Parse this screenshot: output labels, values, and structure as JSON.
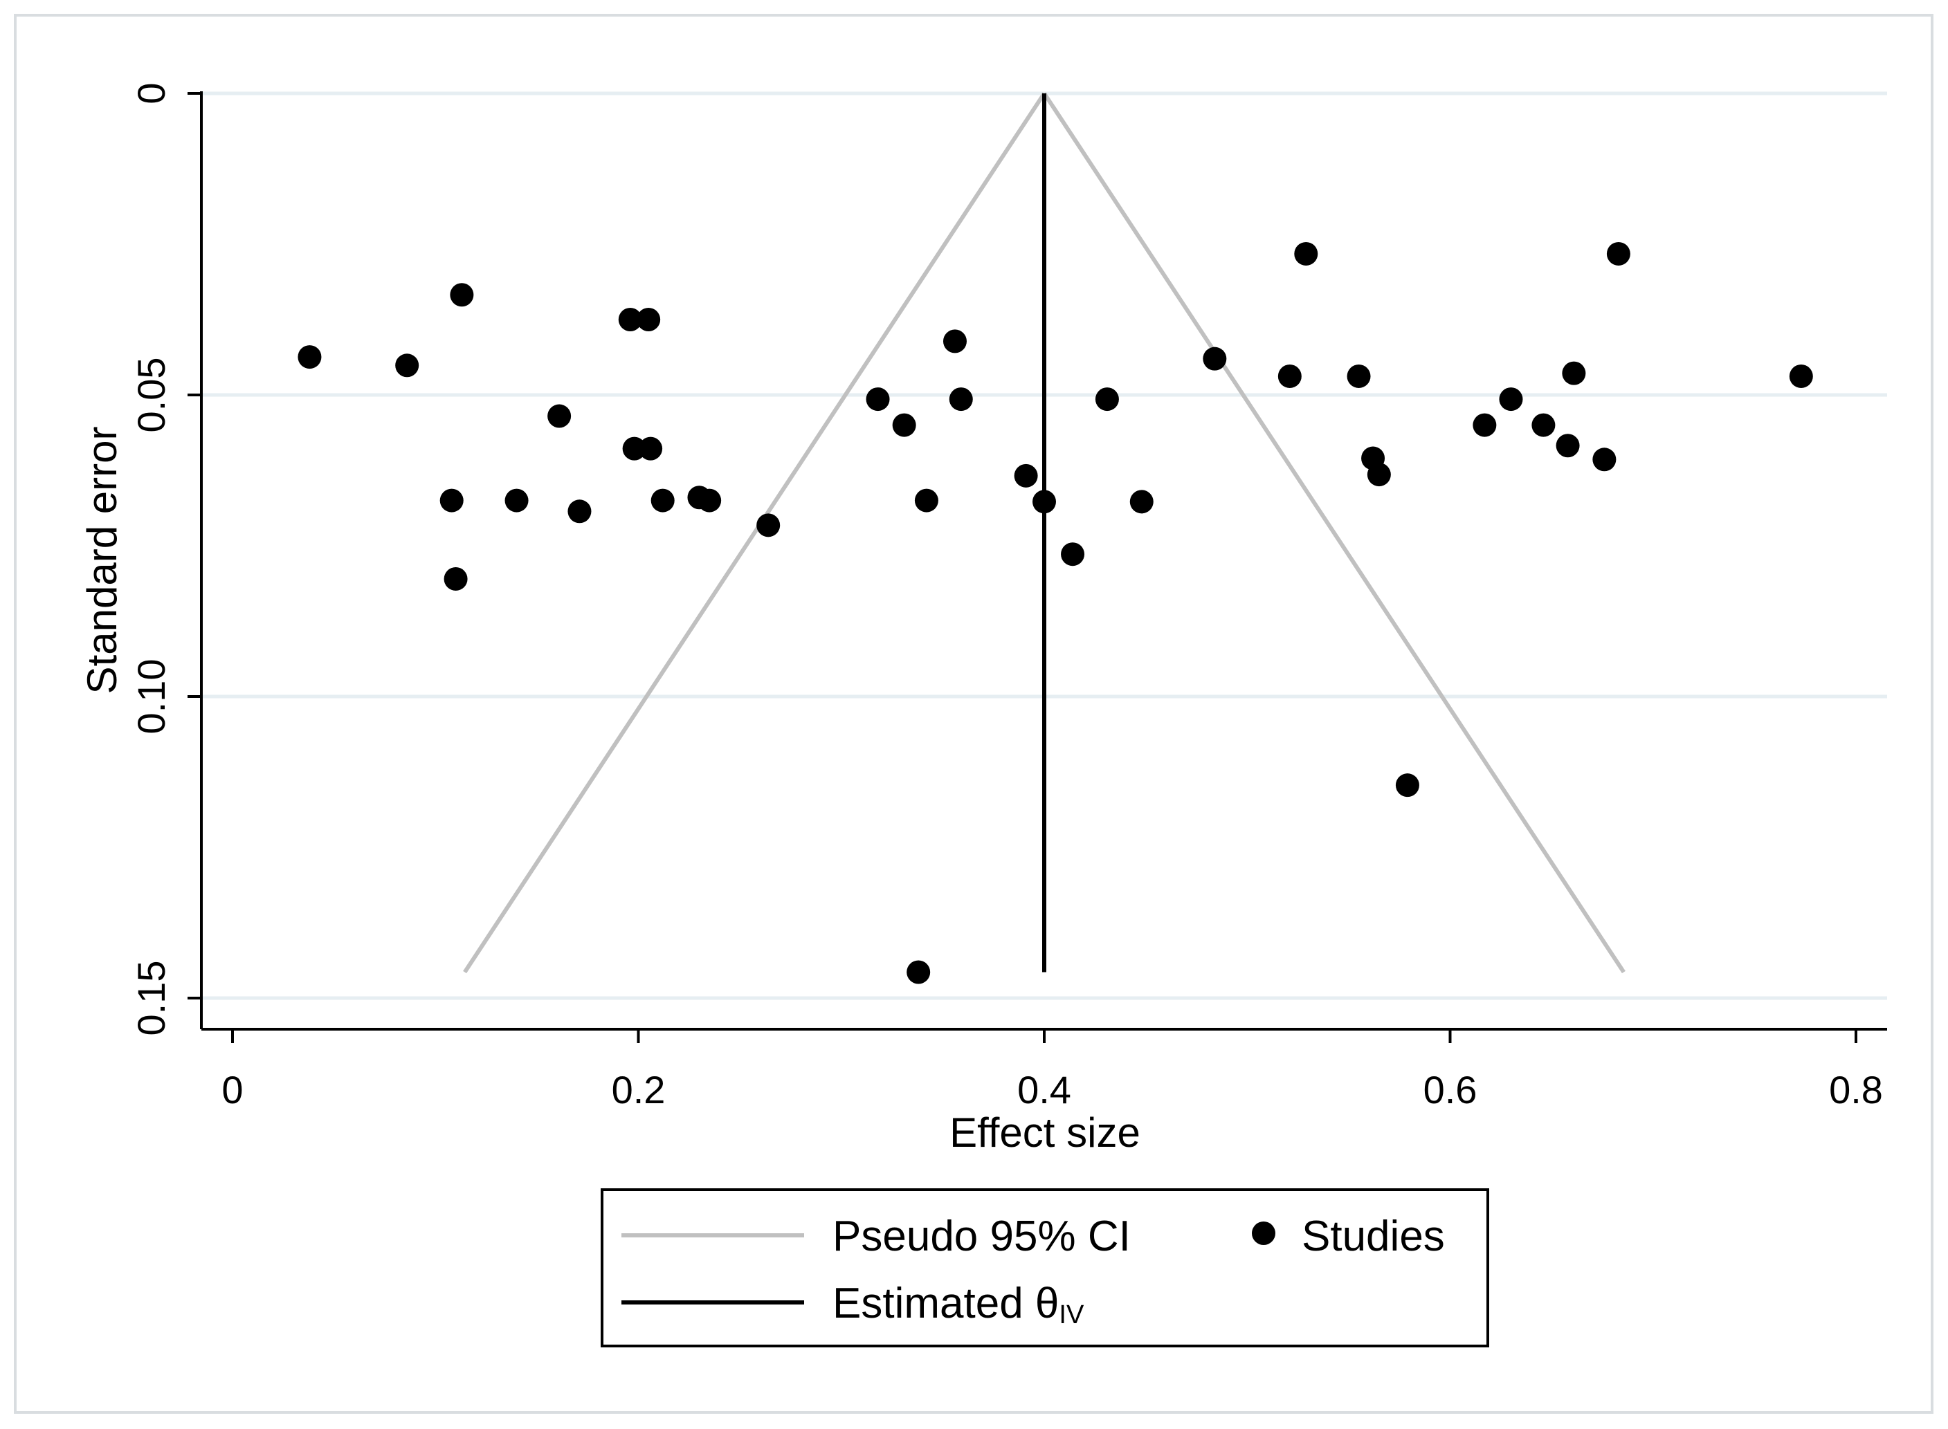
{
  "chart_data": {
    "type": "scatter",
    "title": "",
    "xlabel": "Effect size",
    "ylabel": "Standard error",
    "xlim": [
      -0.04,
      0.81
    ],
    "ylim": [
      0,
      0.155
    ],
    "y_reversed": true,
    "x_ticks": [
      0,
      0.2,
      0.4,
      0.6,
      0.8
    ],
    "x_tick_labels": [
      "0",
      "0.2",
      "0.4",
      "0.6",
      "0.8"
    ],
    "y_ticks": [
      0,
      0.05,
      0.1,
      0.15
    ],
    "y_tick_labels": [
      "0",
      "0.05",
      "0.10",
      "0.15"
    ],
    "grid": "horizontal",
    "colors": {
      "studies": "#000000",
      "ci": "#c0c0c0",
      "estimate": "#000000",
      "grid": "#e6eef2",
      "frame": "#d9dde0"
    },
    "estimate": {
      "name": "Estimated θ",
      "subscript": "IV",
      "theta": 0.4,
      "se_max": 0.1457
    },
    "pseudo_ci": {
      "name": "Pseudo 95% CI",
      "z": 1.96,
      "se_max": 0.1457
    },
    "series": [
      {
        "name": "Studies",
        "marker": "circle",
        "points": [
          [
            0.038,
            0.0437
          ],
          [
            0.086,
            0.0451
          ],
          [
            0.113,
            0.0334
          ],
          [
            0.108,
            0.0675
          ],
          [
            0.11,
            0.0805
          ],
          [
            0.14,
            0.0675
          ],
          [
            0.161,
            0.0535
          ],
          [
            0.171,
            0.0693
          ],
          [
            0.196,
            0.0375
          ],
          [
            0.205,
            0.0375
          ],
          [
            0.198,
            0.0589
          ],
          [
            0.206,
            0.0589
          ],
          [
            0.212,
            0.0675
          ],
          [
            0.23,
            0.067
          ],
          [
            0.235,
            0.0675
          ],
          [
            0.264,
            0.0716
          ],
          [
            0.318,
            0.0507
          ],
          [
            0.331,
            0.055
          ],
          [
            0.342,
            0.0675
          ],
          [
            0.356,
            0.0411
          ],
          [
            0.359,
            0.0507
          ],
          [
            0.391,
            0.0634
          ],
          [
            0.4,
            0.0677
          ],
          [
            0.414,
            0.0764
          ],
          [
            0.431,
            0.0507
          ],
          [
            0.448,
            0.0677
          ],
          [
            0.484,
            0.044
          ],
          [
            0.521,
            0.0469
          ],
          [
            0.529,
            0.0266
          ],
          [
            0.555,
            0.0469
          ],
          [
            0.562,
            0.0605
          ],
          [
            0.565,
            0.0632
          ],
          [
            0.579,
            0.1147
          ],
          [
            0.617,
            0.055
          ],
          [
            0.63,
            0.0507
          ],
          [
            0.646,
            0.055
          ],
          [
            0.658,
            0.0584
          ],
          [
            0.661,
            0.0464
          ],
          [
            0.676,
            0.0607
          ],
          [
            0.683,
            0.0266
          ],
          [
            0.773,
            0.0469
          ],
          [
            0.338,
            0.1457
          ]
        ]
      }
    ],
    "legend": {
      "position": "bottom",
      "entries": [
        {
          "label": "Pseudo 95% CI",
          "symbol": "line",
          "color": "#c0c0c0"
        },
        {
          "label": "Studies",
          "symbol": "circle",
          "color": "#000000"
        },
        {
          "label": "Estimated θ",
          "subscript": "IV",
          "symbol": "line",
          "color": "#000000"
        }
      ]
    }
  }
}
